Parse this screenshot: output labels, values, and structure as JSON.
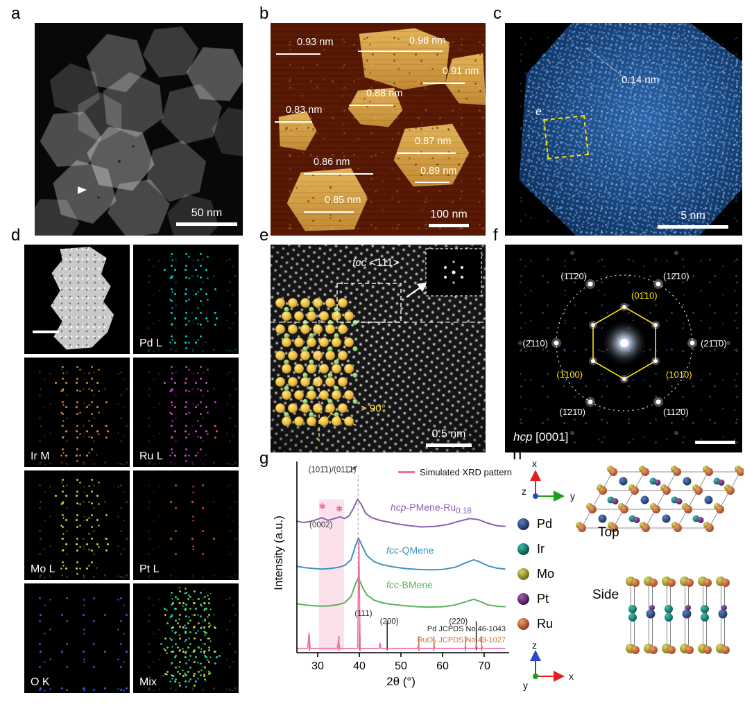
{
  "panels": {
    "a": {
      "letter": "a",
      "scalebar_label": "50 nm"
    },
    "b": {
      "letter": "b",
      "scalebar_label": "100 nm",
      "measurements": [
        {
          "label": "0.93 nm"
        },
        {
          "label": "0.98 nm"
        },
        {
          "label": "0.91 nm"
        },
        {
          "label": "0.88 nm"
        },
        {
          "label": "0.83 nm"
        },
        {
          "label": "0.87 nm"
        },
        {
          "label": "0.86 nm"
        },
        {
          "label": "0.89 nm"
        },
        {
          "label": "0.85 nm"
        }
      ]
    },
    "c": {
      "letter": "c",
      "scalebar_label": "5 nm",
      "spacing_label": "0.14 nm",
      "roi_label": "e"
    },
    "d": {
      "letter": "d",
      "maps": [
        {
          "label": "",
          "color": "#d9d9d9"
        },
        {
          "label": "Pd L",
          "color": "#00d5d5"
        },
        {
          "label": "Ir M",
          "color": "#d98e3f"
        },
        {
          "label": "Ru L",
          "color": "#d446d4"
        },
        {
          "label": "Mo L",
          "color": "#d6d23e"
        },
        {
          "label": "Pt L",
          "color": "#e04545"
        },
        {
          "label": "O K",
          "color": "#3b5bd6"
        },
        {
          "label": "Mix",
          "color": "#3ad08a"
        }
      ]
    },
    "e": {
      "letter": "e",
      "phase_italic": "fcc",
      "phase_rest": " <111>",
      "angle_label": "> 90°",
      "scalebar_label": "0.5 nm"
    },
    "f": {
      "letter": "f",
      "zone_italic": "hcp",
      "zone_rest": " [0001]",
      "labels": [
        {
          "text": "(1̄1̄20)"
        },
        {
          "text": "(12̄10)"
        },
        {
          "text": "(2̄110)"
        },
        {
          "text": "(21̄1̄0)"
        },
        {
          "text": "(1̄21̄0)"
        },
        {
          "text": "(112̄0)"
        },
        {
          "text": "(01̄10)"
        },
        {
          "text": "(1̄100)"
        },
        {
          "text": "(101̄0)"
        }
      ]
    },
    "g": {
      "letter": "g",
      "legend_label": "Simulated XRD pattern",
      "xlabel": "2θ (°)",
      "ylabel": "Intensity (a.u.)",
      "curve_labels": [
        {
          "italic": "hcp",
          "main": "-PMene-Ru",
          "sub": "0.18",
          "color": "#8a5fae"
        },
        {
          "italic": "fcc",
          "main": "-QMene",
          "sub": "",
          "color": "#3f93c0"
        },
        {
          "italic": "fcc",
          "main": "-BMene",
          "sub": "",
          "color": "#57b357"
        }
      ],
      "jcpds_pd": "Pd JCPDS No.46-1043",
      "jcpds_ruo2_pre": "RuO",
      "jcpds_ruo2_sub": "2",
      "jcpds_ruo2_post": " JCPDS No.43-1027"
    },
    "h": {
      "letter": "h",
      "top_label": "Top",
      "side_label": "Side",
      "axes": {
        "x": "x",
        "y": "y",
        "z": "z"
      },
      "legend": [
        {
          "element": "Pd",
          "color": "#1c3a6e"
        },
        {
          "element": "Ir",
          "color": "#0c7b70"
        },
        {
          "element": "Mo",
          "color": "#a8a23c"
        },
        {
          "element": "Pt",
          "color": "#5e2a6e"
        },
        {
          "element": "Ru",
          "color": "#c2603e"
        }
      ]
    }
  },
  "chart_data": {
    "type": "line",
    "title": "",
    "xlabel": "2θ (°)",
    "ylabel": "Intensity (a.u.)",
    "xlim": [
      25,
      75
    ],
    "ylim": [
      0,
      4.3
    ],
    "xticks": [
      30,
      40,
      50,
      60,
      70
    ],
    "legend_position": "top-right",
    "series": [
      {
        "name": "hcp-PMene-Ru0.18",
        "color": "#8a5fae",
        "width": 2,
        "points": [
          [
            25,
            3.0
          ],
          [
            26.5,
            2.97
          ],
          [
            28,
            2.99
          ],
          [
            29.5,
            3.03
          ],
          [
            31,
            3.08
          ],
          [
            32.5,
            3.02
          ],
          [
            34,
            3.06
          ],
          [
            35.3,
            3.1
          ],
          [
            36.5,
            3.06
          ],
          [
            37.5,
            3.12
          ],
          [
            38.5,
            3.28
          ],
          [
            39.6,
            3.5
          ],
          [
            40.5,
            3.38
          ],
          [
            41.5,
            3.18
          ],
          [
            43,
            3.08
          ],
          [
            45,
            3.02
          ],
          [
            47,
            2.98
          ],
          [
            49,
            2.94
          ],
          [
            52,
            2.9
          ],
          [
            55,
            2.87
          ],
          [
            58,
            2.88
          ],
          [
            61,
            2.92
          ],
          [
            64,
            3.0
          ],
          [
            66.5,
            3.06
          ],
          [
            68.5,
            3.04
          ],
          [
            71,
            2.95
          ],
          [
            73,
            2.9
          ],
          [
            75,
            2.88
          ]
        ]
      },
      {
        "name": "fcc-QMene",
        "color": "#3f93c0",
        "width": 2,
        "points": [
          [
            25,
            1.97
          ],
          [
            27,
            1.94
          ],
          [
            29,
            1.92
          ],
          [
            31,
            1.91
          ],
          [
            33,
            1.92
          ],
          [
            35,
            1.95
          ],
          [
            36.5,
            1.99
          ],
          [
            38,
            2.12
          ],
          [
            39,
            2.42
          ],
          [
            39.8,
            2.62
          ],
          [
            40.6,
            2.45
          ],
          [
            41.8,
            2.22
          ],
          [
            43.5,
            2.08
          ],
          [
            45.5,
            2.01
          ],
          [
            48,
            1.96
          ],
          [
            51,
            1.92
          ],
          [
            54,
            1.9
          ],
          [
            57,
            1.89
          ],
          [
            60,
            1.9
          ],
          [
            63,
            1.95
          ],
          [
            65.5,
            2.05
          ],
          [
            67.5,
            2.12
          ],
          [
            69,
            2.07
          ],
          [
            71,
            1.98
          ],
          [
            73,
            1.93
          ],
          [
            75,
            1.91
          ]
        ]
      },
      {
        "name": "fcc-BMene",
        "color": "#57b357",
        "width": 2,
        "points": [
          [
            25,
            1.12
          ],
          [
            27,
            1.09
          ],
          [
            29,
            1.07
          ],
          [
            31,
            1.06
          ],
          [
            33,
            1.07
          ],
          [
            35,
            1.1
          ],
          [
            36.5,
            1.14
          ],
          [
            38,
            1.28
          ],
          [
            39,
            1.55
          ],
          [
            39.8,
            1.72
          ],
          [
            40.6,
            1.52
          ],
          [
            41.8,
            1.32
          ],
          [
            43.5,
            1.2
          ],
          [
            45.5,
            1.14
          ],
          [
            48,
            1.1
          ],
          [
            51,
            1.07
          ],
          [
            54,
            1.05
          ],
          [
            57,
            1.04
          ],
          [
            60,
            1.05
          ],
          [
            63,
            1.09
          ],
          [
            65.5,
            1.16
          ],
          [
            67.5,
            1.22
          ],
          [
            69,
            1.17
          ],
          [
            71,
            1.09
          ],
          [
            73,
            1.06
          ],
          [
            75,
            1.05
          ]
        ]
      },
      {
        "name": "Simulated XRD pattern",
        "color": "#f06ba8",
        "width": 1.6,
        "points": [
          [
            25,
            0.1
          ],
          [
            27.6,
            0.1
          ],
          [
            27.9,
            0.45
          ],
          [
            28.2,
            0.1
          ],
          [
            34.7,
            0.1
          ],
          [
            35,
            0.28
          ],
          [
            35.3,
            0.1
          ],
          [
            39.6,
            0.1
          ],
          [
            39.9,
            2.6
          ],
          [
            40.2,
            0.1
          ],
          [
            44.8,
            0.1
          ],
          [
            45,
            0.22
          ],
          [
            45.2,
            0.1
          ],
          [
            54,
            0.1
          ],
          [
            54.2,
            0.18
          ],
          [
            54.4,
            0.1
          ],
          [
            57.8,
            0.1
          ],
          [
            58,
            0.16
          ],
          [
            58.2,
            0.1
          ],
          [
            65.3,
            0.1
          ],
          [
            65.5,
            0.15
          ],
          [
            65.7,
            0.1
          ],
          [
            67.9,
            0.1
          ],
          [
            68.1,
            0.2
          ],
          [
            68.3,
            0.1
          ],
          [
            69.3,
            0.1
          ],
          [
            69.5,
            0.14
          ],
          [
            69.7,
            0.1
          ],
          [
            75,
            0.1
          ]
        ]
      }
    ],
    "highlight_band": {
      "x0": 30.3,
      "x1": 36.3,
      "y0": 0.05,
      "y1": 3.5,
      "color": "#f7c4da",
      "opacity": 0.5
    },
    "dashed_line": {
      "x": 39.7,
      "y0": 0.14,
      "y1": 4.05
    },
    "asterisks": [
      {
        "char": "✱",
        "x": 31.1,
        "y": 3.27,
        "color": "#f06ba8"
      },
      {
        "char": "✱",
        "x": 35.2,
        "y": 3.22,
        "color": "#f06ba8"
      }
    ],
    "annotations": [
      {
        "text": "(101̄1)/(011̄1)",
        "x": 33.5,
        "y": 4.12,
        "color": "#333333",
        "arrow": [
          37.2,
          4.1,
          39.5,
          4.26
        ]
      },
      {
        "text": "(0002)",
        "x": 30.8,
        "y": 2.86,
        "color": "#333333"
      },
      {
        "text": "(111)",
        "x": 41.0,
        "y": 0.84,
        "color": "#222222"
      },
      {
        "text": "(200)",
        "x": 47.2,
        "y": 0.66,
        "color": "#222222"
      },
      {
        "text": "(220)",
        "x": 63.8,
        "y": 0.66,
        "color": "#222222"
      }
    ],
    "jcpds": [
      {
        "name": "Pd JCPDS No.46-1043",
        "color": "#222222",
        "ticks": [
          40.1,
          46.7,
          68.1
        ],
        "y0": 0.06,
        "y1": 0.72
      },
      {
        "name": "RuO2 JCPDS No.43-1027",
        "color": "#c87137",
        "ticks": [
          28,
          35.1,
          40.2,
          54.3,
          57.9,
          65.5,
          69.4
        ],
        "y0": 0.04,
        "y1": 0.38
      }
    ]
  }
}
